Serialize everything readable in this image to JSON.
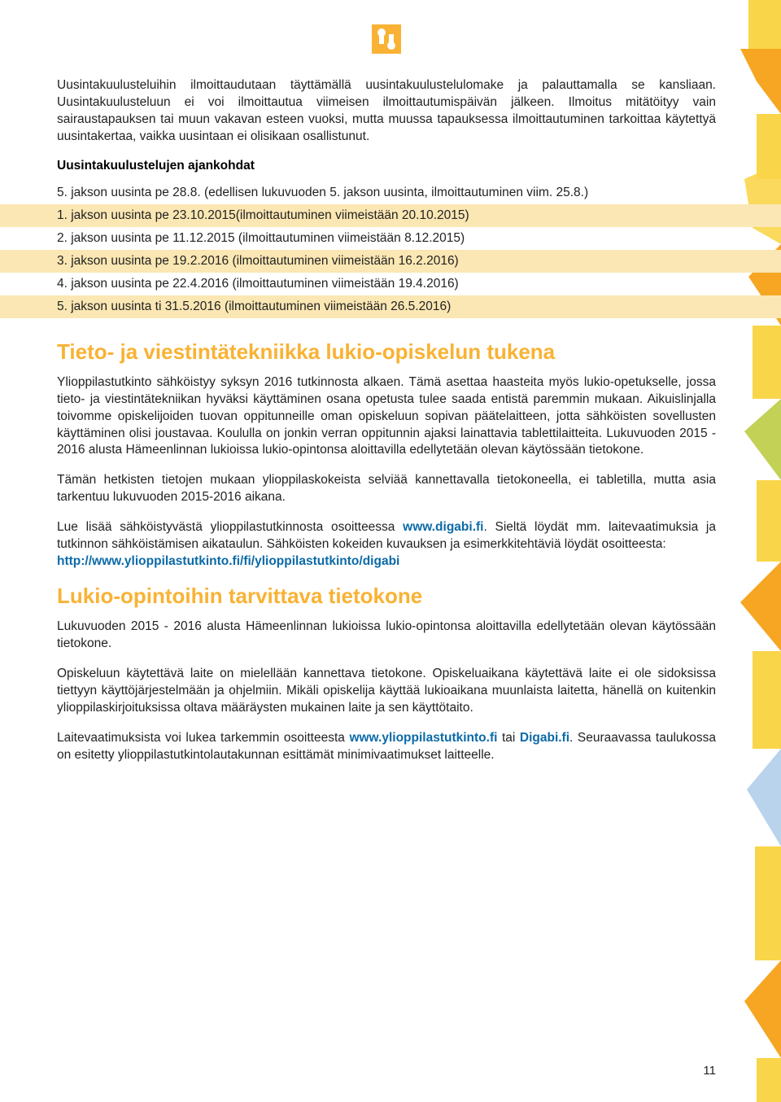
{
  "colors": {
    "heading": "#f9b233",
    "link": "#0b6aa8",
    "highlight_bg": "#fbe7b3",
    "text": "#222222",
    "deco_yellow": "#f9d54a",
    "deco_orange": "#f6a623",
    "deco_green": "#b8c93a",
    "deco_blue": "#a7c8e8"
  },
  "logo": {
    "fill": "#f9b233",
    "bg": "#ffffff"
  },
  "intro": {
    "p1": "Uusintakuulusteluihin ilmoittaudutaan täyttämällä uusintakuulustelulomake ja palauttamalla se kansliaan. Uusintakuulusteluun ei voi ilmoittautua viimeisen ilmoittautumispäivän jälkeen. Ilmoitus mitätöityy vain sairaustapauksen tai muun vakavan esteen vuoksi, mutta muussa tapauksessa ilmoittautuminen tarkoittaa käytettyä uusintakertaa, vaikka uusintaan ei olisikaan osallistunut."
  },
  "schedule": {
    "heading": "Uusintakuulustelujen ajankohdat",
    "items": [
      {
        "text": "5. jakson uusinta pe 28.8. (edellisen lukuvuoden 5. jakson uusinta, ilmoittautuminen viim. 25.8.)",
        "highlight": false
      },
      {
        "text": "1. jakson uusinta pe 23.10.2015(ilmoittautuminen viimeistään 20.10.2015)",
        "highlight": true
      },
      {
        "text": "2. jakson uusinta pe 11.12.2015 (ilmoittautuminen viimeistään 8.12.2015)",
        "highlight": false
      },
      {
        "text": "3. jakson uusinta pe 19.2.2016 (ilmoittautuminen viimeistään 16.2.2016)",
        "highlight": true
      },
      {
        "text": "4. jakson uusinta pe 22.4.2016 (ilmoittautuminen viimeistään 19.4.2016)",
        "highlight": false
      },
      {
        "text": "5. jakson uusinta ti 31.5.2016 (ilmoittautuminen viimeistään 26.5.2016)",
        "highlight": true
      }
    ]
  },
  "section1": {
    "title": "Tieto- ja viestintätekniikka lukio-opiskelun tukena",
    "p1": "Ylioppilastutkinto sähköistyy syksyn 2016 tutkinnosta alkaen. Tämä asettaa haasteita myös lukio-opetukselle, jossa tieto- ja viestintätekniikan hyväksi käyttäminen osana opetusta tulee saada entistä paremmin mukaan. Aikuislinjalla toivomme opiskelijoiden tuovan oppitunneille oman opiskeluun sopivan päätelaitteen, jotta sähköisten sovellusten käyttäminen olisi joustavaa. Koululla on jonkin verran oppitunnin ajaksi lainattavia tablettilaitteita. Lukuvuoden 2015 - 2016 alusta Hämeenlinnan lukioissa lukio-opintonsa aloittavilla edellytetään olevan käytössään tietokone.",
    "p2": "Tämän hetkisten tietojen mukaan ylioppilaskokeista selviää kannettavalla tietokoneella, ei tabletilla, mutta asia tarkentuu lukuvuoden 2015-2016 aikana.",
    "p3_pre": "Lue lisää sähköistyvästä ylioppilastutkinnosta osoitteessa ",
    "p3_link1": "www.digabi.fi",
    "p3_post": ". Sieltä löydät mm. laitevaatimuksia ja tutkinnon sähköistämisen aikataulun. Sähköisten kokeiden kuvauksen ja esimerkkitehtäviä löydät osoitteesta:",
    "p3_link2": "http://www.ylioppilastutkinto.fi/fi/ylioppilastutkinto/digabi"
  },
  "section2": {
    "title": "Lukio-opintoihin tarvittava tietokone",
    "p1": "Lukuvuoden 2015 - 2016 alusta Hämeenlinnan lukioissa lukio-opintonsa aloittavilla edellytetään olevan käytössään tietokone.",
    "p2": "Opiskeluun käytettävä laite on mielellään kannettava tietokone. Opiskeluaikana käytettävä laite ei ole sidoksissa tiettyyn käyttöjärjestelmään ja ohjelmiin. Mikäli opiskelija käyttää lukioaikana muunlaista laitetta, hänellä on kuitenkin ylioppilaskirjoituksissa oltava määräysten mukainen laite ja sen käyttötaito.",
    "p3_pre": "Laitevaatimuksista voi lukea tarkemmin osoitteesta ",
    "p3_link1": "www.ylioppilastutkinto.fi",
    "p3_mid": " tai ",
    "p3_link2": "Digabi.fi",
    "p3_post": ". Seuraavassa taulukossa on esitetty ylioppilastutkintolautakunnan esittämät minimivaatimukset laitteelle."
  },
  "page_number": "11"
}
